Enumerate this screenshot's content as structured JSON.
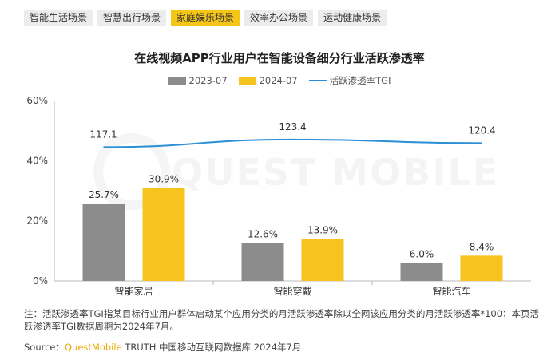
{
  "tabs": [
    {
      "label": "智能生活场景",
      "active": false
    },
    {
      "label": "智慧出行场景",
      "active": false
    },
    {
      "label": "家庭娱乐场景",
      "active": true
    },
    {
      "label": "效率办公场景",
      "active": false
    },
    {
      "label": "运动健康场景",
      "active": false
    }
  ],
  "colors": {
    "series_2023": "#8c8c8c",
    "series_2024": "#f7c31e",
    "tgi_line": "#2a8fd6",
    "active_tab": "#f5c518"
  },
  "watermark": "QUEST MOBILE",
  "chart_data": {
    "type": "bar",
    "title": "在线视频APP行业用户在智能设备细分行业活跃渗透率",
    "categories": [
      "智能家居",
      "智能穿戴",
      "智能汽车"
    ],
    "series": [
      {
        "name": "2023-07",
        "values": [
          25.7,
          12.6,
          6.0
        ],
        "labels": [
          "25.7%",
          "12.6%",
          "6.0%"
        ]
      },
      {
        "name": "2024-07",
        "values": [
          30.9,
          13.9,
          8.4
        ],
        "labels": [
          "30.9%",
          "13.9%",
          "8.4%"
        ]
      }
    ],
    "line_series": {
      "name": "活跃渗透率TGI",
      "values": [
        117.1,
        123.4,
        120.4
      ],
      "labels": [
        "117.1",
        "123.4",
        "120.4"
      ]
    },
    "y_ticks": [
      "0%",
      "20%",
      "40%",
      "60%"
    ],
    "ylim": [
      0,
      60
    ],
    "legend_position": "top-center"
  },
  "note": "注：活跃渗透率TGI指某目标行业用户群体启动某个应用分类的月活跃渗透率除以全网该应用分类的月活跃渗透率*100；本页活跃渗透率TGI数据周期为2024年7月。",
  "source": {
    "prefix": "Source：",
    "brand": "QuestMobile",
    "rest": " TRUTH 中国移动互联网数据库 2024年7月"
  }
}
